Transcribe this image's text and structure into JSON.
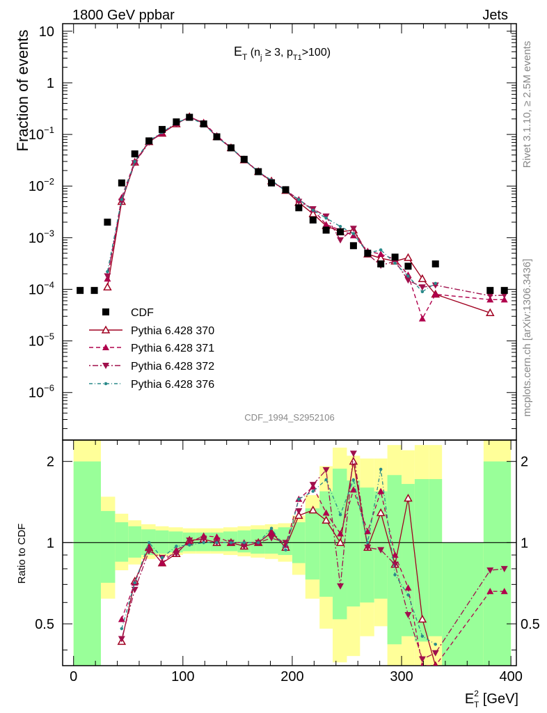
{
  "header": {
    "left": "1800 GeV ppbar",
    "right": "Jets"
  },
  "side_labels": {
    "rivet": "Rivet 3.1.10, ≥ 2.5M events",
    "mcplots": "mcplots.cern.ch [arXiv:1306.3436]"
  },
  "analysis_id": "CDF_1994_S2952106",
  "top_title": {
    "main": "E",
    "sub1": "T",
    "mid": " (n",
    "sub2": "j",
    "mid2": " ≥ 3, p",
    "sub3": "T1",
    "end": ">100)"
  },
  "top_ylabel": "Fraction of events",
  "bottom_ylabel": "Ratio to CDF",
  "xlabel": {
    "main": "E",
    "sup": "2",
    "sub": "T",
    "unit": " [GeV]"
  },
  "top_ytick_labels": [
    "10",
    "1",
    "10",
    "10",
    "10",
    "10",
    "10",
    "10"
  ],
  "top_ytick_exps": [
    "",
    "",
    "−1",
    "−2",
    "−3",
    "−4",
    "−5",
    "−6"
  ],
  "xtick_labels": [
    "0",
    "100",
    "200",
    "300",
    "400"
  ],
  "ratio_ytick_labels": [
    "0.5",
    "1",
    "2"
  ],
  "legend": [
    {
      "label": "CDF",
      "color": "#000000",
      "style": "square"
    },
    {
      "label": "Pythia 6.428 370",
      "color": "#a00020",
      "style": "open-triangle"
    },
    {
      "label": "Pythia 6.428 371",
      "color": "#b0004c",
      "style": "filled-triangle"
    },
    {
      "label": "Pythia 6.428 372",
      "color": "#a0104c",
      "style": "filled-down-triangle"
    },
    {
      "label": "Pythia 6.428 376",
      "color": "#2a8a8a",
      "style": "dot"
    }
  ],
  "chart_data": {
    "type": "scatter",
    "x_range": [
      -10,
      405
    ],
    "y_log": true,
    "y_range": [
      1.2e-07,
      14
    ],
    "ratio_y_range": [
      0.35,
      2.4
    ],
    "cdf": {
      "x": [
        6,
        19,
        31,
        44,
        56,
        69,
        81,
        94,
        106,
        119,
        131,
        144,
        156,
        169,
        181,
        194,
        206,
        219,
        231,
        244,
        256,
        269,
        281,
        294,
        306,
        331,
        381,
        394
      ],
      "y": [
        9.5e-05,
        9.5e-05,
        0.002,
        0.0115,
        0.042,
        0.075,
        0.125,
        0.175,
        0.215,
        0.16,
        0.09,
        0.055,
        0.033,
        0.019,
        0.0115,
        0.0085,
        0.0038,
        0.0022,
        0.0014,
        0.0013,
        0.0007,
        0.0005,
        0.00031,
        0.00042,
        0.00028,
        0.00031,
        9.5e-05,
        9.5e-05
      ]
    },
    "series": [
      {
        "name": "Pythia 6.428 370",
        "color": "#a00020",
        "dash": "",
        "marker": "open-triangle",
        "x": [
          31,
          44,
          56,
          69,
          81,
          94,
          106,
          119,
          131,
          144,
          156,
          169,
          181,
          194,
          206,
          219,
          231,
          244,
          256,
          269,
          281,
          294,
          306,
          319,
          331,
          381
        ],
        "y": [
          0.00011,
          0.005,
          0.029,
          0.072,
          0.105,
          0.16,
          0.22,
          0.165,
          0.09,
          0.055,
          0.032,
          0.019,
          0.0125,
          0.0082,
          0.0048,
          0.0029,
          0.0017,
          0.0013,
          0.0014,
          0.00048,
          0.0004,
          0.00035,
          0.00041,
          0.00016,
          8e-05,
          3.5e-05
        ]
      },
      {
        "name": "Pythia 6.428 371",
        "color": "#b0004c",
        "dash": "6,4",
        "marker": "filled-triangle",
        "x": [
          31,
          44,
          56,
          69,
          81,
          94,
          106,
          119,
          131,
          144,
          156,
          169,
          181,
          194,
          206,
          219,
          231,
          244,
          256,
          269,
          281,
          294,
          306,
          319,
          331,
          381,
          394
        ],
        "y": [
          0.00016,
          0.006,
          0.03,
          0.072,
          0.105,
          0.165,
          0.215,
          0.17,
          0.095,
          0.055,
          0.033,
          0.019,
          0.0125,
          0.0083,
          0.0055,
          0.0035,
          0.0018,
          0.0014,
          0.0011,
          0.00055,
          0.00048,
          0.00038,
          0.00019,
          2.7e-05,
          8e-05,
          6.3e-05,
          6.3e-05
        ]
      },
      {
        "name": "Pythia 6.428 372",
        "color": "#a0104c",
        "dash": "2,3,8,3",
        "marker": "filled-down-triangle",
        "x": [
          31,
          44,
          56,
          69,
          81,
          94,
          106,
          119,
          131,
          144,
          156,
          169,
          181,
          194,
          206,
          219,
          231,
          244,
          256,
          269,
          281,
          294,
          306,
          319,
          331,
          381,
          394
        ],
        "y": [
          0.00018,
          0.005,
          0.028,
          0.07,
          0.11,
          0.16,
          0.22,
          0.165,
          0.09,
          0.055,
          0.032,
          0.019,
          0.012,
          0.0085,
          0.005,
          0.0036,
          0.0026,
          0.0009,
          0.0015,
          0.00048,
          0.00029,
          0.00035,
          0.00015,
          0.00011,
          0.00012,
          7.5e-05,
          7.7e-05
        ]
      },
      {
        "name": "Pythia 6.428 376",
        "color": "#2a8a8a",
        "dash": "5,3,1,3",
        "marker": "dot",
        "x": [
          31,
          44,
          56,
          69,
          81,
          94,
          106,
          119,
          131,
          144,
          156,
          169,
          181,
          194,
          206,
          219,
          231,
          244,
          256,
          269,
          281,
          294,
          306,
          319,
          331
        ],
        "y": [
          0.00022,
          0.0055,
          0.03,
          0.075,
          0.11,
          0.17,
          0.21,
          0.16,
          0.09,
          0.055,
          0.033,
          0.019,
          0.013,
          0.008,
          0.0055,
          0.0034,
          0.0024,
          0.00165,
          0.0012,
          0.0005,
          0.00058,
          0.00032,
          0.00018,
          9e-05,
          0.00013
        ]
      }
    ],
    "ratio_series": [
      {
        "name": "Pythia 6.428 370",
        "x": [
          44,
          56,
          69,
          81,
          94,
          106,
          119,
          131,
          144,
          156,
          169,
          181,
          194,
          206,
          219,
          231,
          244,
          256,
          269,
          281,
          294,
          306,
          319,
          331
        ],
        "y": [
          0.43,
          0.72,
          0.96,
          0.84,
          0.91,
          1.02,
          1.03,
          1.0,
          1.0,
          0.97,
          1.0,
          1.09,
          0.96,
          1.26,
          1.32,
          1.21,
          1.0,
          2.0,
          0.96,
          1.29,
          0.83,
          1.46,
          0.52,
          0.26
        ]
      },
      {
        "name": "Pythia 6.428 371",
        "x": [
          44,
          56,
          69,
          81,
          94,
          106,
          119,
          131,
          144,
          156,
          169,
          181,
          194,
          206,
          219,
          231,
          244,
          256,
          269,
          281,
          294,
          306,
          319,
          331,
          381,
          394
        ],
        "y": [
          0.52,
          0.71,
          0.96,
          0.84,
          0.94,
          1.0,
          1.06,
          1.05,
          1.0,
          1.0,
          1.0,
          1.09,
          0.98,
          1.45,
          1.61,
          1.29,
          1.08,
          1.57,
          1.1,
          1.55,
          0.9,
          0.68,
          0.12,
          0.26,
          0.66,
          0.66
        ]
      },
      {
        "name": "Pythia 6.428 372",
        "x": [
          44,
          56,
          69,
          81,
          94,
          106,
          119,
          131,
          144,
          156,
          169,
          181,
          194,
          206,
          219,
          231,
          244,
          256,
          269,
          281,
          294,
          306,
          319,
          331,
          381,
          394
        ],
        "y": [
          0.44,
          0.67,
          0.93,
          0.88,
          0.91,
          1.02,
          1.03,
          1.0,
          1.0,
          0.97,
          1.0,
          1.04,
          1.0,
          1.31,
          1.64,
          1.86,
          0.69,
          2.14,
          0.96,
          0.94,
          0.83,
          0.54,
          0.37,
          0.39,
          0.79,
          0.8
        ]
      },
      {
        "name": "Pythia 6.428 376",
        "x": [
          44,
          56,
          69,
          81,
          94,
          106,
          119,
          131,
          144,
          156,
          169,
          181,
          194,
          206,
          219,
          231,
          244,
          256,
          269,
          281,
          294,
          306,
          319,
          331
        ],
        "y": [
          0.48,
          0.71,
          1.0,
          0.88,
          0.97,
          0.98,
          1.0,
          1.0,
          1.0,
          1.0,
          1.0,
          1.13,
          0.94,
          1.45,
          1.55,
          1.71,
          1.27,
          1.71,
          1.0,
          1.87,
          0.76,
          0.64,
          0.45,
          0.42
        ]
      }
    ],
    "ratio_bands": {
      "edges": [
        0,
        25,
        38,
        50,
        62,
        75,
        87,
        100,
        112,
        125,
        137,
        150,
        162,
        175,
        187,
        200,
        212,
        225,
        237,
        250,
        262,
        275,
        287,
        300,
        312,
        325,
        337,
        375,
        400
      ],
      "yellow_lo": [
        0.35,
        0.62,
        0.79,
        0.83,
        0.87,
        0.89,
        0.9,
        0.91,
        0.91,
        0.91,
        0.9,
        0.89,
        0.88,
        0.87,
        0.85,
        0.76,
        0.62,
        0.48,
        0.36,
        0.38,
        0.45,
        0.49,
        0.35,
        0.35,
        0.35,
        0.35,
        0.35,
        0.35
      ],
      "yellow_hi": [
        2.4,
        1.48,
        1.28,
        1.21,
        1.17,
        1.15,
        1.14,
        1.13,
        1.13,
        1.13,
        1.14,
        1.15,
        1.16,
        1.17,
        1.18,
        1.26,
        1.5,
        1.92,
        2.25,
        2.1,
        2.05,
        2.05,
        2.3,
        2.2,
        2.3,
        2.3,
        1.0,
        2.4
      ],
      "green_lo": [
        0.35,
        0.71,
        0.85,
        0.88,
        0.9,
        0.91,
        0.92,
        0.93,
        0.93,
        0.93,
        0.93,
        0.92,
        0.91,
        0.91,
        0.9,
        0.84,
        0.73,
        0.63,
        0.52,
        0.58,
        0.6,
        0.62,
        0.42,
        0.45,
        0.43,
        0.45,
        0.35,
        0.35
      ],
      "green_hi": [
        2.0,
        1.31,
        1.19,
        1.15,
        1.12,
        1.11,
        1.1,
        1.09,
        1.09,
        1.09,
        1.1,
        1.11,
        1.12,
        1.12,
        1.14,
        1.19,
        1.34,
        1.55,
        1.88,
        1.7,
        1.6,
        1.55,
        1.78,
        1.65,
        1.72,
        1.72,
        1.0,
        2.0
      ]
    }
  }
}
